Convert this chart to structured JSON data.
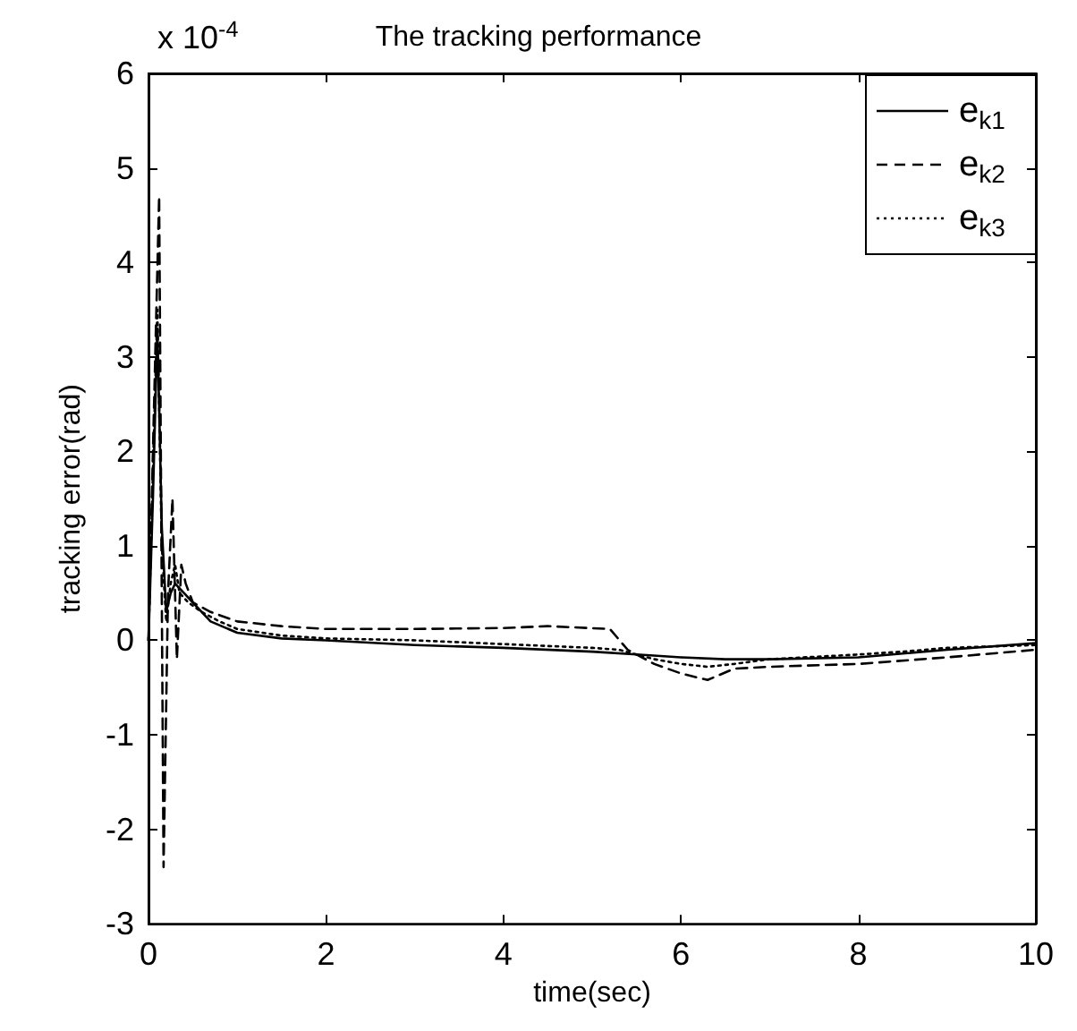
{
  "chart_data": {
    "type": "line",
    "title": "The tracking performance",
    "xlabel": "time(sec)",
    "ylabel": "tracking error(rad)",
    "annotations": [
      "x 10$^{-4}$"
    ],
    "xlim": [
      0,
      10
    ],
    "xticks": [
      0,
      2,
      4,
      6,
      8,
      10
    ],
    "ylim": [
      -3,
      6
    ],
    "yticks": [
      -3,
      -2,
      -1,
      0,
      1,
      2,
      3,
      4,
      5,
      6
    ],
    "grid": false,
    "legend": "top right",
    "marker": "none",
    "series": [
      {
        "name": "e$_{k1}$",
        "color": "#000000",
        "line_style": "solid",
        "x": [
          0,
          0.05,
          0.1,
          0.15,
          0.2,
          0.25,
          0.3,
          0.4,
          0.5,
          0.7,
          1,
          1.5,
          2,
          3,
          4,
          5,
          5.5,
          6,
          6.5,
          7,
          8,
          9,
          10
        ],
        "values": [
          0,
          1.5,
          3.3,
          1.2,
          0.3,
          0.5,
          0.6,
          0.5,
          0.4,
          0.2,
          0.08,
          0.02,
          0,
          -0.05,
          -0.08,
          -0.12,
          -0.15,
          -0.18,
          -0.2,
          -0.2,
          -0.18,
          -0.1,
          -0.03
        ]
      },
      {
        "name": "e$_{k2}$",
        "color": "#000000",
        "line_style": "dashed",
        "x": [
          0,
          0.05,
          0.12,
          0.17,
          0.22,
          0.27,
          0.32,
          0.37,
          0.42,
          0.5,
          0.7,
          1,
          1.5,
          2,
          3,
          4,
          4.5,
          5.2,
          5.4,
          5.7,
          6,
          6.3,
          6.6,
          7,
          8,
          9,
          10
        ],
        "values": [
          0,
          2,
          4.7,
          -2.4,
          0.5,
          1.5,
          -0.2,
          0.8,
          0.6,
          0.4,
          0.3,
          0.2,
          0.15,
          0.12,
          0.12,
          0.13,
          0.15,
          0.12,
          -0.1,
          -0.25,
          -0.35,
          -0.42,
          -0.3,
          -0.28,
          -0.25,
          -0.18,
          -0.1
        ]
      },
      {
        "name": "e$_{k3}$",
        "color": "#000000",
        "line_style": "dotted",
        "x": [
          0,
          0.05,
          0.1,
          0.15,
          0.2,
          0.25,
          0.3,
          0.35,
          0.45,
          0.6,
          0.8,
          1,
          1.5,
          2,
          3,
          4,
          5,
          5.3,
          5.7,
          6,
          6.3,
          6.6,
          7,
          8,
          8.5,
          9,
          10
        ],
        "values": [
          0,
          1.8,
          3.5,
          1,
          0.2,
          0.6,
          0.8,
          0.5,
          0.4,
          0.3,
          0.2,
          0.12,
          0.05,
          0.02,
          0,
          -0.04,
          -0.08,
          -0.1,
          -0.2,
          -0.25,
          -0.28,
          -0.25,
          -0.2,
          -0.15,
          -0.12,
          -0.08,
          -0.05
        ]
      }
    ]
  }
}
